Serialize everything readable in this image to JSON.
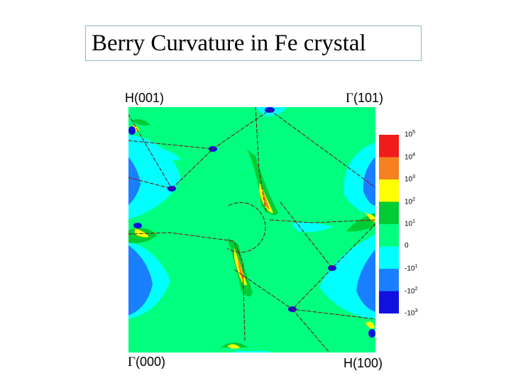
{
  "title": "Berry Curvature in Fe crystal",
  "corners": {
    "top_left": {
      "symbol": "",
      "text": "H(001)"
    },
    "top_right": {
      "symbol": "Γ",
      "text": "(101)"
    },
    "bottom_left": {
      "symbol": "Γ",
      "text": "(000)"
    },
    "bottom_right": {
      "symbol": "",
      "text": "H(100)"
    }
  },
  "colorbar": {
    "colors": [
      "#f21b1b",
      "#f48020",
      "#ffff00",
      "#00cc33",
      "#00ff7f",
      "#00ffff",
      "#1a7fff",
      "#1010e0"
    ],
    "labels": [
      {
        "base": "10",
        "exp": "5"
      },
      {
        "base": "10",
        "exp": "4"
      },
      {
        "base": "10",
        "exp": "3"
      },
      {
        "base": "10",
        "exp": "2"
      },
      {
        "base": "10",
        "exp": "1"
      },
      {
        "base": "0",
        "exp": ""
      },
      {
        "base": "-10",
        "exp": "1"
      },
      {
        "base": "-10",
        "exp": "2"
      },
      {
        "base": "-10",
        "exp": "3"
      }
    ]
  },
  "colors": {
    "background_region": "#00ff7f",
    "fermi_line": "#7a1010"
  }
}
